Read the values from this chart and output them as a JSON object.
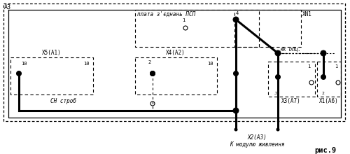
{
  "fig_width": 5.0,
  "fig_height": 2.2,
  "dpi": 100,
  "bg_color": "#ffffff",
  "label_A3": "А3",
  "label_PSP": "плата з'єднань ПСП",
  "label_KN1": "ХN1",
  "label_KK": "КК ОПЦ.",
  "label_X5A1": "Х5(А1)",
  "label_X4A2": "Х4(А2)",
  "label_X3A7": "Х3(А7)",
  "label_X1A6": "Х1(А6)",
  "label_SN": "СН строб",
  "label_X2A3": "Х2(А3)",
  "label_power": "К модулю живлення",
  "label_fig": "рис.9",
  "line_color": "#000000"
}
